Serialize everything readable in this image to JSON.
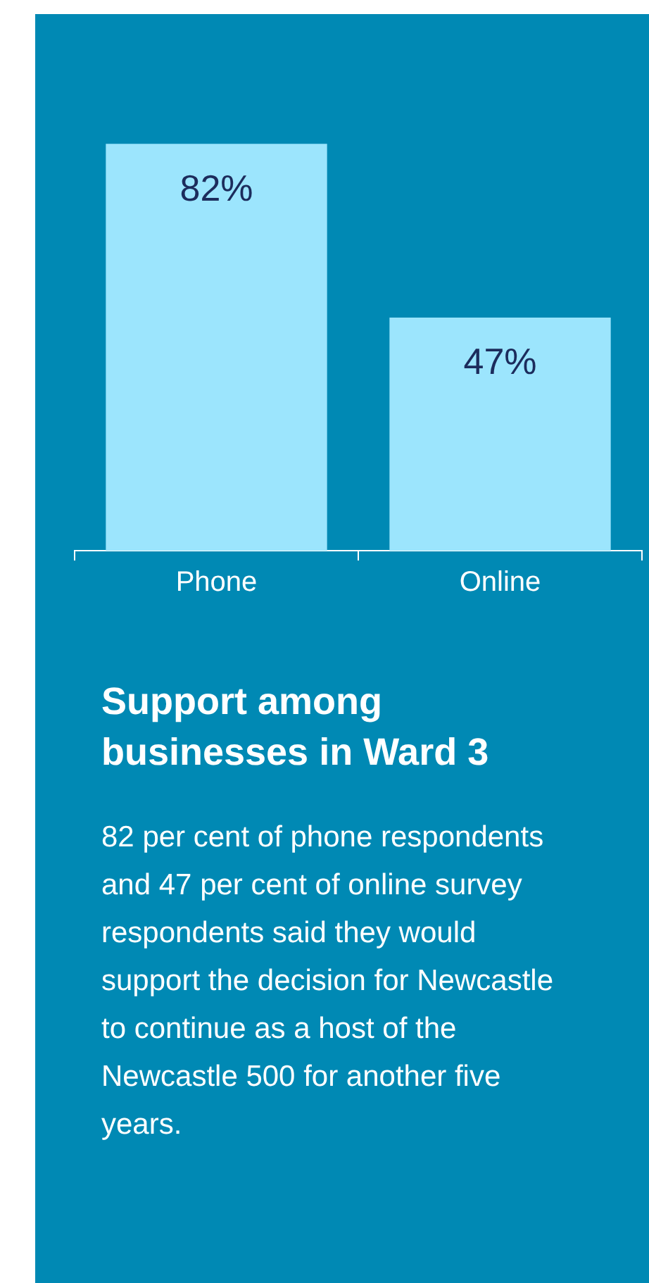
{
  "chart_data": {
    "type": "bar",
    "title": "Support among businesses in Ward 3",
    "categories": [
      "Phone",
      "Online"
    ],
    "values": [
      82,
      47
    ],
    "value_labels": [
      "82%",
      "47%"
    ],
    "color": "#9ce5fd",
    "legend": false,
    "grid": false,
    "tick_labels": "x",
    "annotations": [
      "82 per cent of phone respondents and 47 per cent of online survey respondents said they would support the decision for Newcastle to continue as a host of the Newcastle 500 for another five years."
    ]
  }
}
